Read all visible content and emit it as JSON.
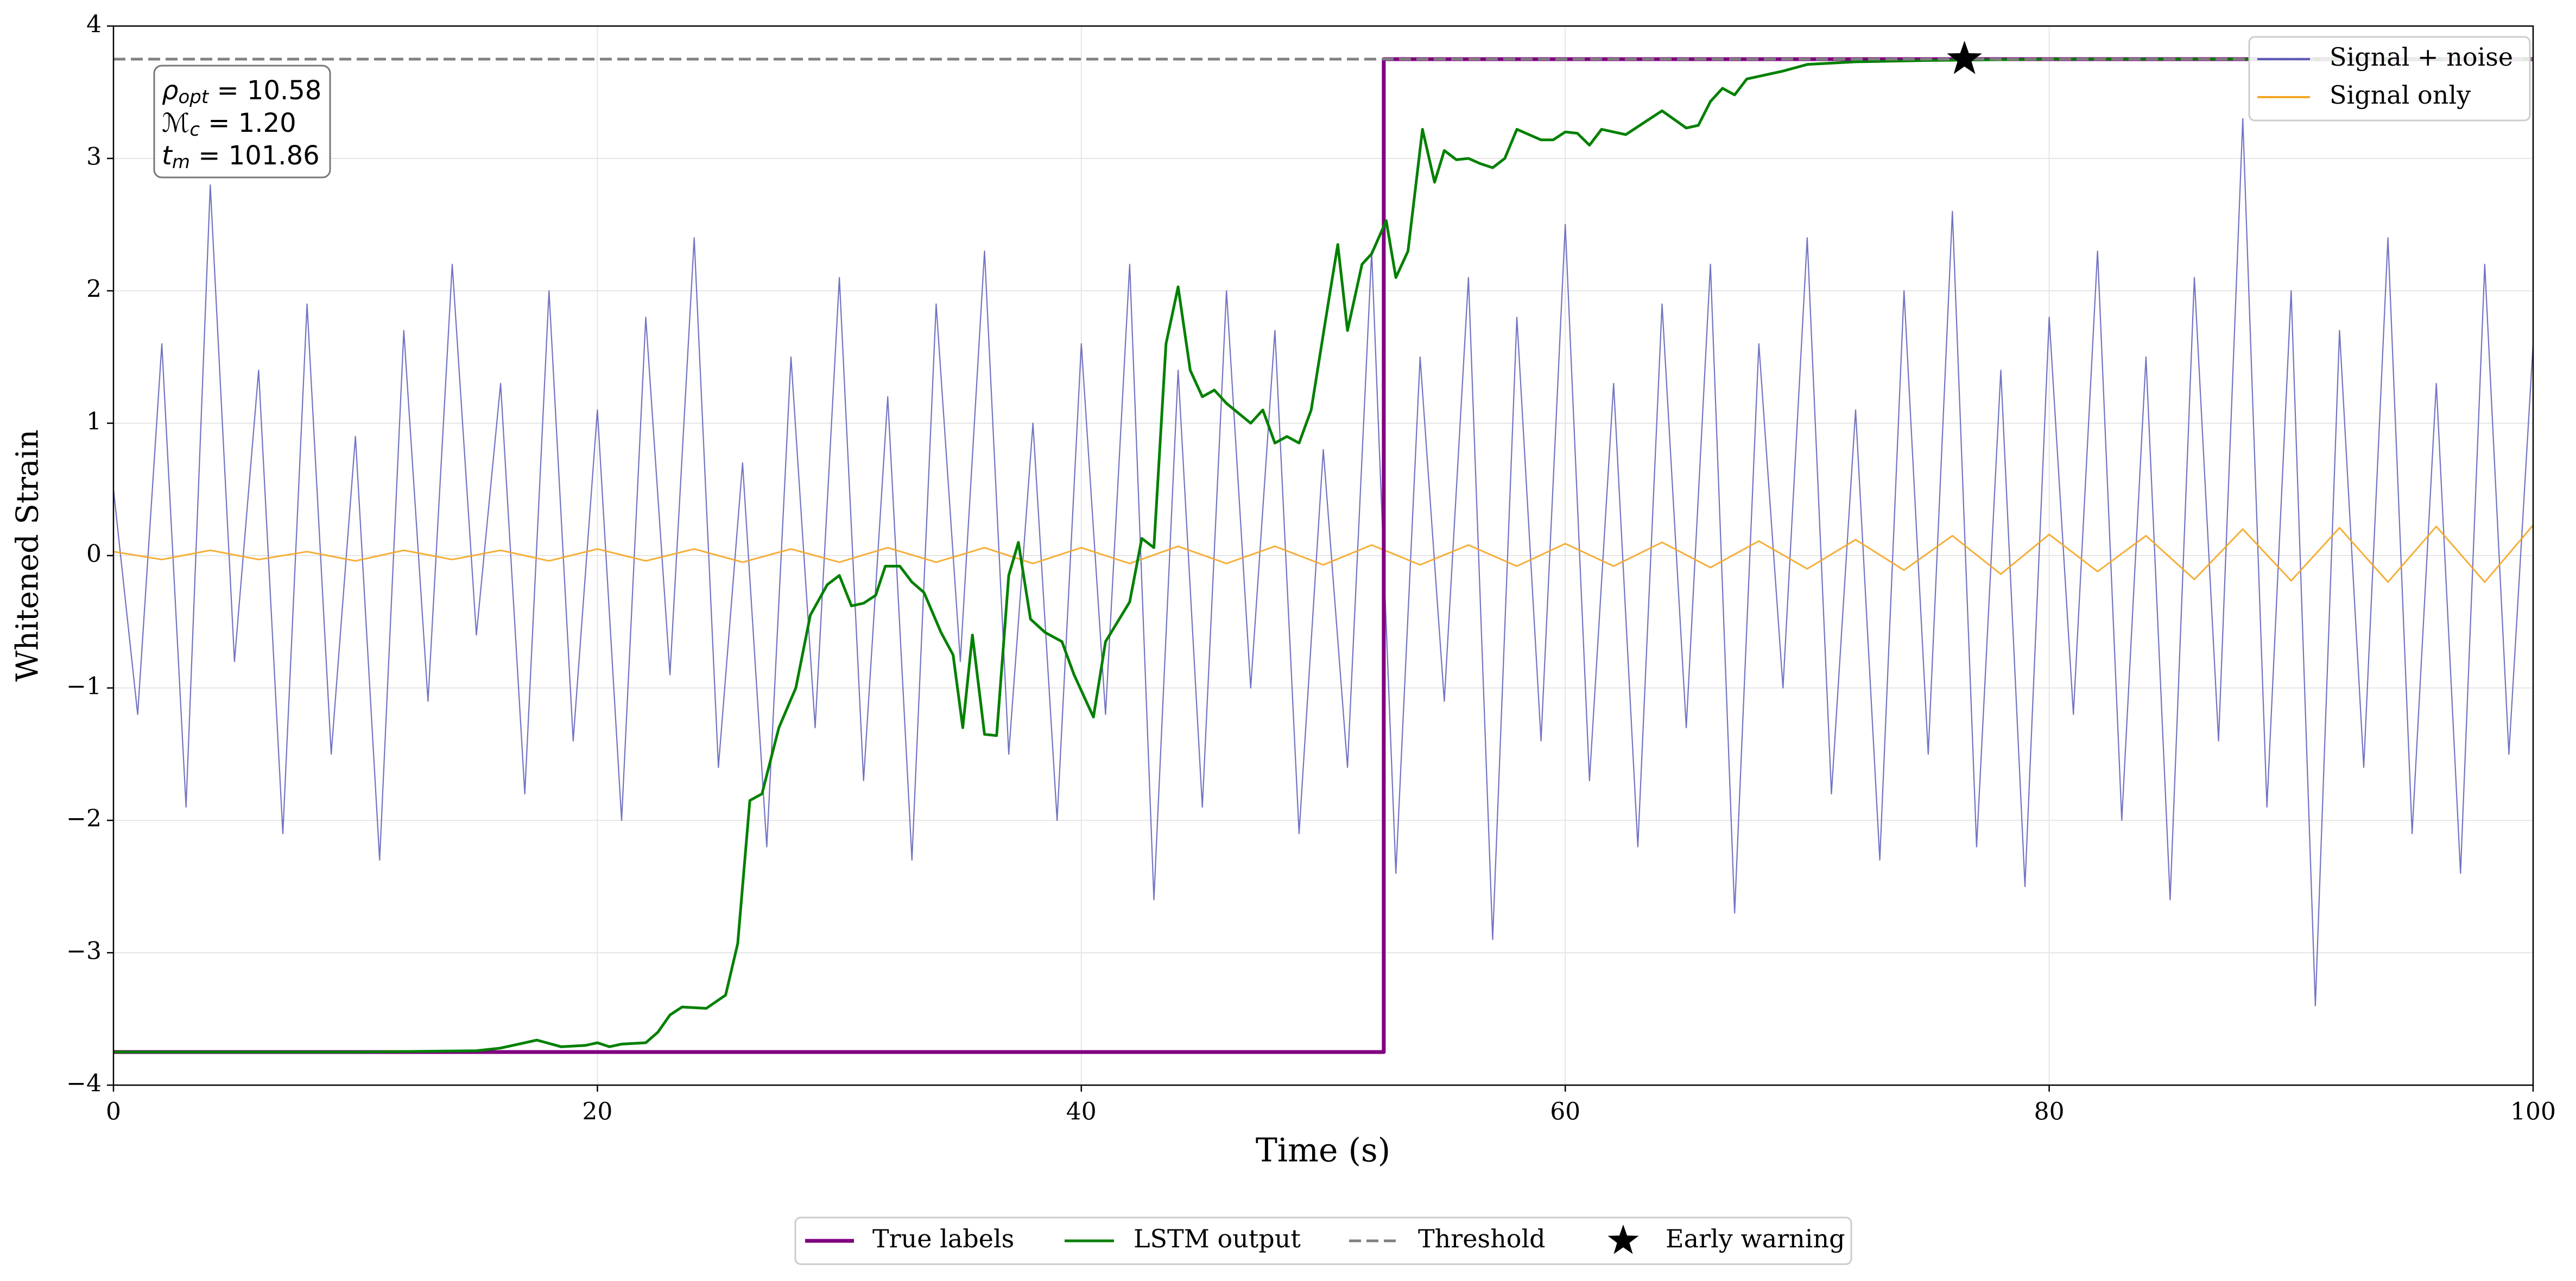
{
  "chart_data": {
    "type": "line",
    "xlabel": "Time (s)",
    "ylabel": "Whitened Strain",
    "xlim": [
      0,
      100
    ],
    "ylim": [
      -4,
      4
    ],
    "xticks": [
      0,
      20,
      40,
      60,
      80,
      100
    ],
    "yticks": [
      {
        "value": -4,
        "label": "−4"
      },
      {
        "value": -3,
        "label": "−3"
      },
      {
        "value": -2,
        "label": "−2"
      },
      {
        "value": -1,
        "label": "−1"
      },
      0,
      1,
      2,
      3,
      4
    ],
    "grid": true,
    "annotation": [
      {
        "symbol": "ρ",
        "sub": "opt",
        "text": " = 10.58"
      },
      {
        "symbol": "ℳ",
        "sub": "c",
        "text": " = 1.20"
      },
      {
        "symbol": "t",
        "sub": "m",
        "text": " = 101.86"
      }
    ],
    "series": [
      {
        "name": "Signal + noise",
        "color": "#5a5ab8",
        "legend": "upper right",
        "x": [
          0,
          1,
          2,
          3,
          4,
          5,
          6,
          7,
          8,
          9,
          10,
          11,
          12,
          13,
          14,
          15,
          16,
          17,
          18,
          19,
          20,
          21,
          22,
          23,
          24,
          25,
          26,
          27,
          28,
          29,
          30,
          31,
          32,
          33,
          34,
          35,
          36,
          37,
          38,
          39,
          40,
          41,
          42,
          43,
          44,
          45,
          46,
          47,
          48,
          49,
          50,
          51,
          52,
          53,
          54,
          55,
          56,
          57,
          58,
          59,
          60,
          61,
          62,
          63,
          64,
          65,
          66,
          67,
          68,
          69,
          70,
          71,
          72,
          73,
          74,
          75,
          76,
          77,
          78,
          79,
          80,
          81,
          82,
          83,
          84,
          85,
          86,
          87,
          88,
          89,
          90,
          91,
          92,
          93,
          94,
          95,
          96,
          97,
          98,
          99,
          100
        ],
        "values": [
          0.5,
          -1.2,
          1.6,
          -1.9,
          2.8,
          -0.8,
          1.4,
          -2.1,
          1.9,
          -1.5,
          0.9,
          -2.3,
          1.7,
          -1.1,
          2.2,
          -0.6,
          1.3,
          -1.8,
          2.0,
          -1.4,
          1.1,
          -2.0,
          1.8,
          -0.9,
          2.4,
          -1.6,
          0.7,
          -2.2,
          1.5,
          -1.3,
          2.1,
          -1.7,
          1.2,
          -2.3,
          1.9,
          -0.8,
          2.3,
          -1.5,
          1.0,
          -2.0,
          1.6,
          -1.2,
          2.2,
          -2.6,
          1.4,
          -1.9,
          2.0,
          -1.0,
          1.7,
          -2.1,
          0.8,
          -1.6,
          2.3,
          -2.4,
          1.5,
          -1.1,
          2.1,
          -2.9,
          1.8,
          -1.4,
          2.5,
          -1.7,
          1.3,
          -2.2,
          1.9,
          -1.3,
          2.2,
          -2.7,
          1.6,
          -1.0,
          2.4,
          -1.8,
          1.1,
          -2.3,
          2.0,
          -1.5,
          2.6,
          -2.2,
          1.4,
          -2.5,
          1.8,
          -1.2,
          2.3,
          -2.0,
          1.5,
          -2.6,
          2.1,
          -1.4,
          3.3,
          -1.9,
          2.0,
          -3.4,
          1.7,
          -1.6,
          2.4,
          -2.1,
          1.3,
          -2.4,
          2.2,
          -1.5,
          1.6
        ]
      },
      {
        "name": "Signal only",
        "color": "#f5a623",
        "legend": "upper right",
        "x": [
          0,
          2,
          4,
          6,
          8,
          10,
          12,
          14,
          16,
          18,
          20,
          22,
          24,
          26,
          28,
          30,
          32,
          34,
          36,
          38,
          40,
          42,
          44,
          46,
          48,
          50,
          52,
          54,
          56,
          58,
          60,
          62,
          64,
          66,
          68,
          70,
          72,
          74,
          76,
          78,
          80,
          82,
          84,
          86,
          88,
          90,
          92,
          94,
          96,
          98,
          100
        ],
        "values": [
          0.03,
          -0.03,
          0.04,
          -0.03,
          0.03,
          -0.04,
          0.04,
          -0.03,
          0.04,
          -0.04,
          0.05,
          -0.04,
          0.05,
          -0.05,
          0.05,
          -0.05,
          0.06,
          -0.05,
          0.06,
          -0.06,
          0.06,
          -0.06,
          0.07,
          -0.06,
          0.07,
          -0.07,
          0.08,
          -0.07,
          0.08,
          -0.08,
          0.09,
          -0.08,
          0.1,
          -0.09,
          0.11,
          -0.1,
          0.12,
          -0.11,
          0.15,
          -0.14,
          0.16,
          -0.12,
          0.15,
          -0.18,
          0.2,
          -0.19,
          0.21,
          -0.2,
          0.22,
          -0.2,
          0.23
        ]
      },
      {
        "name": "True labels",
        "color": "#800080",
        "legend": "lower center",
        "x": [
          0,
          52.5,
          52.5,
          100
        ],
        "values": [
          -3.75,
          -3.75,
          3.75,
          3.75
        ]
      },
      {
        "name": "LSTM output",
        "color": "#008000",
        "legend": "lower center",
        "x": [
          0,
          10,
          15,
          16,
          17.5,
          18.5,
          19.5,
          20,
          20.5,
          21,
          22,
          22.5,
          23,
          23.5,
          24.5,
          25.3,
          25.8,
          26.3,
          26.8,
          27.5,
          28.2,
          28.8,
          29.5,
          30,
          30.5,
          31,
          31.5,
          31.9,
          32.5,
          33,
          33.5,
          34.2,
          34.7,
          35.1,
          35.5,
          36,
          36.5,
          37,
          37.4,
          37.9,
          38.5,
          39.2,
          39.7,
          40.5,
          41,
          41.5,
          42,
          42.5,
          43,
          43.5,
          44,
          44.5,
          45,
          45.5,
          46,
          47,
          47.5,
          48,
          48.5,
          49,
          49.5,
          50.2,
          50.6,
          51,
          51.6,
          52,
          52.6,
          53,
          53.5,
          54.1,
          54.6,
          55,
          55.5,
          56,
          56.5,
          57,
          57.5,
          58,
          59,
          59.5,
          60,
          60.5,
          61,
          61.5,
          62,
          62.5,
          64,
          65,
          65.5,
          66,
          66.5,
          67,
          67.5,
          69,
          70,
          72,
          75,
          80,
          100
        ],
        "values": [
          -3.75,
          -3.75,
          -3.74,
          -3.72,
          -3.66,
          -3.71,
          -3.7,
          -3.68,
          -3.71,
          -3.69,
          -3.68,
          -3.6,
          -3.47,
          -3.41,
          -3.42,
          -3.32,
          -2.93,
          -1.85,
          -1.8,
          -1.3,
          -1.0,
          -0.45,
          -0.22,
          -0.15,
          -0.38,
          -0.36,
          -0.3,
          -0.08,
          -0.08,
          -0.2,
          -0.28,
          -0.58,
          -0.75,
          -1.3,
          -0.6,
          -1.35,
          -1.36,
          -0.15,
          0.1,
          -0.48,
          -0.58,
          -0.65,
          -0.9,
          -1.22,
          -0.65,
          -0.5,
          -0.35,
          0.13,
          0.06,
          1.6,
          2.03,
          1.4,
          1.2,
          1.25,
          1.15,
          1.0,
          1.1,
          0.85,
          0.9,
          0.85,
          1.1,
          1.9,
          2.35,
          1.7,
          2.2,
          2.28,
          2.53,
          2.1,
          2.3,
          3.22,
          2.82,
          3.06,
          2.99,
          3.0,
          2.96,
          2.93,
          3.0,
          3.22,
          3.14,
          3.14,
          3.2,
          3.19,
          3.1,
          3.22,
          3.2,
          3.18,
          3.36,
          3.23,
          3.25,
          3.43,
          3.53,
          3.48,
          3.6,
          3.66,
          3.71,
          3.73,
          3.74,
          3.75,
          3.75
        ]
      },
      {
        "name": "Threshold",
        "color": "#808080",
        "legend": "lower center",
        "linestyle": "dashed",
        "x": [
          0,
          100
        ],
        "values": [
          3.75,
          3.75
        ]
      },
      {
        "name": "Early warning",
        "color": "#000000",
        "legend": "lower center",
        "marker": "star",
        "x": [
          76.5
        ],
        "values": [
          3.75
        ]
      }
    ]
  }
}
